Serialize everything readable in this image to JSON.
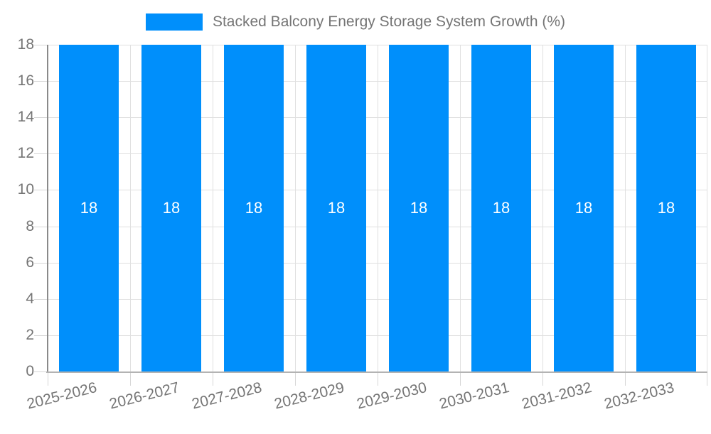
{
  "chart_data": {
    "type": "bar",
    "title": "Stacked Balcony Energy Storage System Growth (%)",
    "categories": [
      "2025-2026",
      "2026-2027",
      "2027-2028",
      "2028-2029",
      "2029-2030",
      "2030-2031",
      "2031-2032",
      "2032-2033"
    ],
    "series": [
      {
        "name": "Stacked Balcony Energy Storage System Growth (%)",
        "values": [
          18,
          18,
          18,
          18,
          18,
          18,
          18,
          18
        ]
      }
    ],
    "bar_value_labels": [
      "18",
      "18",
      "18",
      "18",
      "18",
      "18",
      "18",
      "18"
    ],
    "xlabel": "",
    "ylabel": "",
    "ylim": [
      0,
      18
    ],
    "yticks": [
      0,
      2,
      4,
      6,
      8,
      10,
      12,
      14,
      16,
      18
    ],
    "grid": true,
    "legend_position": "top-center",
    "x_tick_rotation_deg": -14,
    "colors": {
      "bar": "#008FFB",
      "bar_value_label": "#ffffff",
      "axis_label_text": "#757575",
      "gridline": "#e0e0e0",
      "tick_mark": "#d6d6d6",
      "y_axis_line": "#8a8a8a",
      "x_axis_line": "#b3b3b3",
      "background": "#ffffff"
    }
  }
}
